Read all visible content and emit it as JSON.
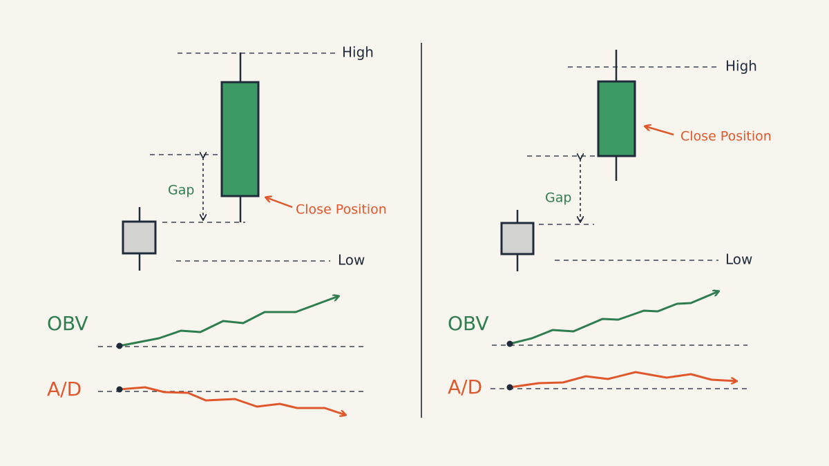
{
  "panels": [
    {
      "high": "High",
      "low": "Low",
      "gap": "Gap",
      "close": "Close Position",
      "obv": "OBV",
      "ad": "A/D"
    },
    {
      "high": "High",
      "low": "Low",
      "gap": "Gap",
      "close": "Close Position",
      "obv": "OBV",
      "ad": "A/D"
    }
  ]
}
